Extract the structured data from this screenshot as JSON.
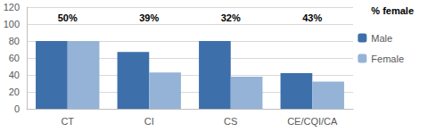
{
  "chart_data": {
    "type": "bar",
    "categories": [
      "CT",
      "CI",
      "CS",
      "CE/CQI/CA"
    ],
    "series": [
      {
        "name": "Male",
        "color": "#3D6FAB",
        "values": [
          80,
          67,
          80,
          42
        ]
      },
      {
        "name": "Female",
        "color": "#95B3D7",
        "values": [
          80,
          43,
          38,
          32
        ]
      }
    ],
    "ylim": [
      0,
      120
    ],
    "yticks": [
      0,
      20,
      40,
      60,
      80,
      100,
      120
    ],
    "grid": true,
    "legend": "right",
    "annotations": {
      "title": "% female",
      "labels": [
        "50%",
        "39%",
        "32%",
        "43%"
      ]
    }
  }
}
